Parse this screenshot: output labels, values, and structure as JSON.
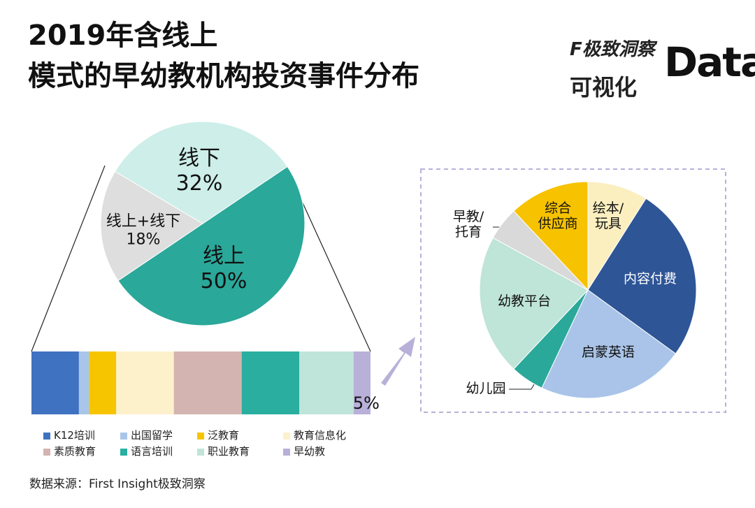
{
  "title": "2019年含线上\n模式的早幼教机构投资事件分布",
  "source": "数据来源：First Insight极致洞察",
  "brand": {
    "name": "F极致洞察",
    "tagline": "可视化",
    "mark": "Data"
  },
  "chart_data": [
    {
      "type": "pie",
      "categories": [
        "线上",
        "线上+线下",
        "线下"
      ],
      "values": [
        50,
        18,
        32
      ],
      "value_labels": [
        "50%",
        "18%",
        "32%"
      ],
      "colors": [
        "#2aa89a",
        "#dedede",
        "#cdeee9"
      ]
    },
    {
      "type": "stacked_bar",
      "series": [
        {
          "name": "K12培训",
          "color": "#3f72c0",
          "values": [
            14
          ]
        },
        {
          "name": "出国留学",
          "color": "#a9c6ea",
          "values": [
            3
          ]
        },
        {
          "name": "泛教育",
          "color": "#f7c500",
          "values": [
            8
          ]
        },
        {
          "name": "教育信息化",
          "color": "#fdf1cc",
          "values": [
            17
          ]
        },
        {
          "name": "素质教育",
          "color": "#d4b4b0",
          "values": [
            20
          ]
        },
        {
          "name": "语言培训",
          "color": "#2aaea0",
          "values": [
            17
          ]
        },
        {
          "name": "职业教育",
          "color": "#bfe4d9",
          "values": [
            16
          ]
        },
        {
          "name": "早幼教",
          "color": "#b9b0d9",
          "values": [
            5
          ],
          "value_labels": [
            "5%"
          ]
        }
      ]
    },
    {
      "type": "pie",
      "categories": [
        "绘本/\n玩具",
        "内容付费",
        "启蒙英语",
        "幼儿园",
        "幼教平台",
        "早教/\n托育",
        "综合\n供应商"
      ],
      "values": [
        9,
        26,
        22,
        5,
        21,
        5,
        12
      ],
      "colors": [
        "#fbefc0",
        "#2e5596",
        "#a9c4e8",
        "#2aa89a",
        "#bfe4d8",
        "#d9d9d9",
        "#f7c200"
      ]
    }
  ]
}
